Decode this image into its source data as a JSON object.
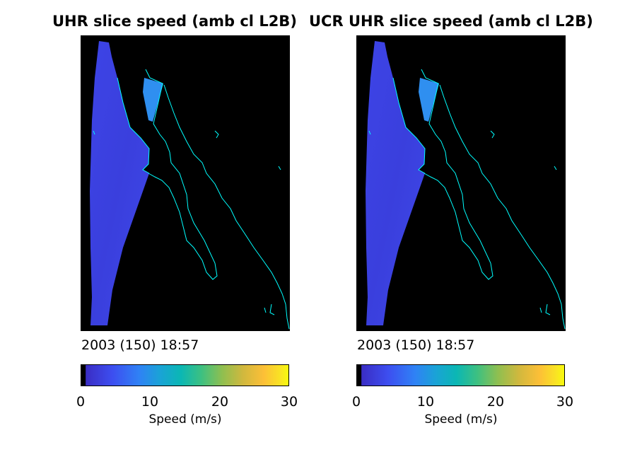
{
  "panels": [
    {
      "title": "UHR slice speed (amb cl L2B)",
      "date_label": "2003 (150) 18:57",
      "colorbar": {
        "ticks": [
          "0",
          "10",
          "20",
          "30"
        ],
        "label": "Speed (m/s)"
      }
    },
    {
      "title": "UCR UHR slice speed (amb cl L2B)",
      "date_label": "2003 (150) 18:57",
      "colorbar": {
        "ticks": [
          "0",
          "10",
          "20",
          "30"
        ],
        "label": "Speed (m/s)"
      }
    }
  ],
  "chart_data": [
    {
      "type": "heatmap",
      "title": "UHR slice speed (amb cl L2B)",
      "subtitle": "2003 (150) 18:57",
      "colorbar_label": "Speed (m/s)",
      "clim": [
        0,
        30
      ],
      "colormap": "parula",
      "background_color": "#000000",
      "coastline_color": "#00ffff",
      "swath_speed_range": [
        2,
        5
      ],
      "inland_patch_speed_range": [
        5,
        7
      ]
    },
    {
      "type": "heatmap",
      "title": "UCR UHR slice speed (amb cl L2B)",
      "subtitle": "2003 (150) 18:57",
      "colorbar_label": "Speed (m/s)",
      "clim": [
        0,
        30
      ],
      "colormap": "parula",
      "background_color": "#000000",
      "coastline_color": "#00ffff",
      "swath_speed_range": [
        2,
        5
      ],
      "inland_patch_speed_range": [
        5,
        7
      ]
    }
  ],
  "colors": {
    "background": "#000000",
    "coastline": "#00ffff",
    "swath": "#3a3fe0",
    "inland_patch": "#2e8ef0"
  }
}
